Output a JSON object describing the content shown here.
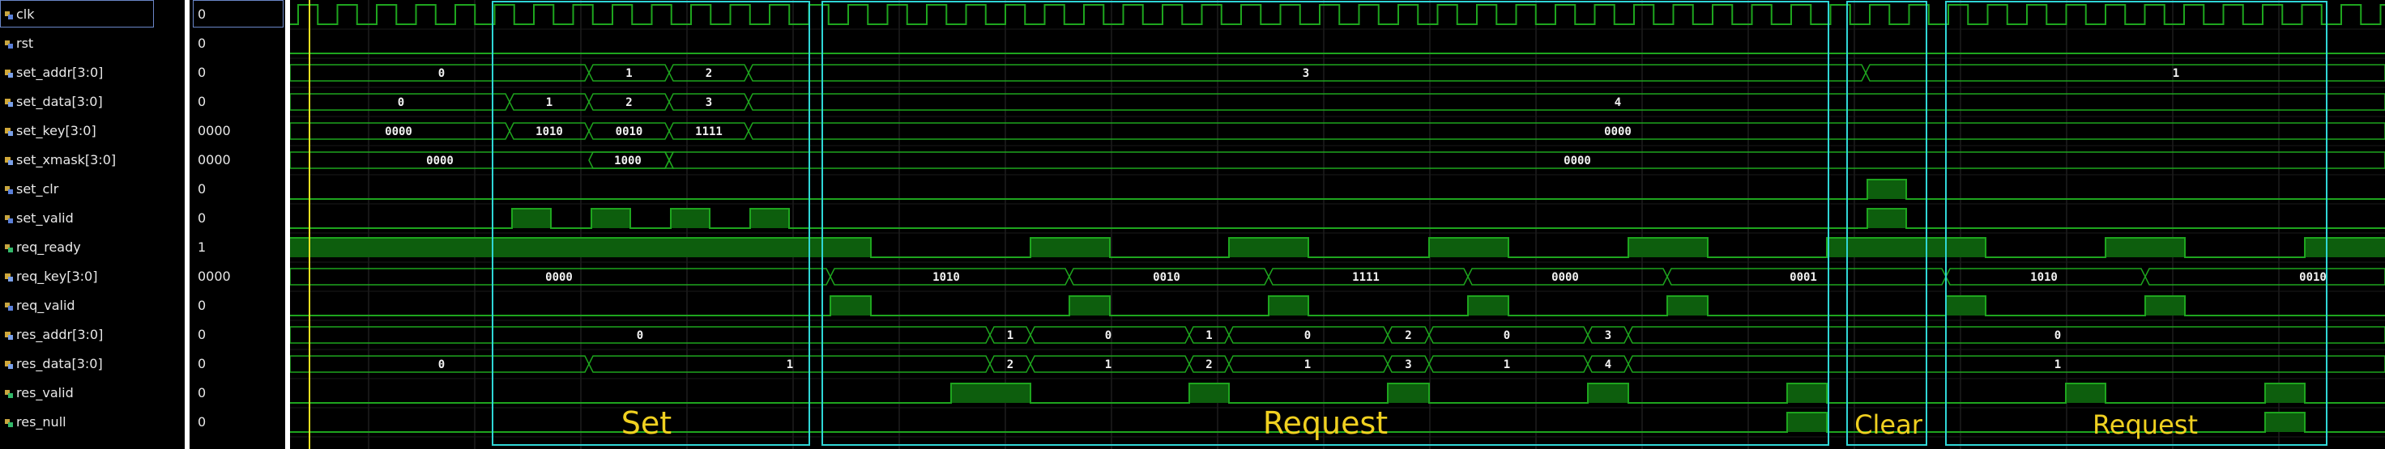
{
  "signals": [
    {
      "name": "clk",
      "value": "0",
      "kind": "in"
    },
    {
      "name": "rst",
      "value": "0",
      "kind": "in"
    },
    {
      "name": "set_addr[3:0]",
      "value": "0",
      "kind": "bus"
    },
    {
      "name": "set_data[3:0]",
      "value": "0",
      "kind": "bus"
    },
    {
      "name": "set_key[3:0]",
      "value": "0000",
      "kind": "bus"
    },
    {
      "name": "set_xmask[3:0]",
      "value": "0000",
      "kind": "bus"
    },
    {
      "name": "set_clr",
      "value": "0",
      "kind": "in"
    },
    {
      "name": "set_valid",
      "value": "0",
      "kind": "in"
    },
    {
      "name": "req_ready",
      "value": "1",
      "kind": "out"
    },
    {
      "name": "req_key[3:0]",
      "value": "0000",
      "kind": "bus"
    },
    {
      "name": "req_valid",
      "value": "0",
      "kind": "in"
    },
    {
      "name": "res_addr[3:0]",
      "value": "0",
      "kind": "bus"
    },
    {
      "name": "res_data[3:0]",
      "value": "0",
      "kind": "bus"
    },
    {
      "name": "res_valid",
      "value": "0",
      "kind": "out"
    },
    {
      "name": "res_null",
      "value": "0",
      "kind": "out"
    }
  ],
  "bus_labels": {
    "set_addr": [
      "0",
      "1",
      "2",
      "3",
      "1"
    ],
    "set_data": [
      "0",
      "1",
      "2",
      "3",
      "4"
    ],
    "set_key": [
      "0000",
      "1010",
      "0010",
      "1111",
      "0000"
    ],
    "set_xmask": [
      "0000",
      "1000",
      "0000"
    ],
    "req_key": [
      "0000",
      "1010",
      "0010",
      "1111",
      "0000",
      "0001",
      "1010",
      "0010"
    ],
    "res_addr": [
      "0",
      "1",
      "0",
      "1",
      "0",
      "2",
      "0",
      "3",
      "0"
    ],
    "res_data": [
      "0",
      "1",
      "2",
      "1",
      "2",
      "1",
      "3",
      "1",
      "4",
      "1"
    ]
  },
  "regions": [
    "Set",
    "Request",
    "Clear",
    "Request"
  ],
  "colors": {
    "wave": "#1ea51e",
    "fill": "#0d5e0d",
    "grid": "#2c2c2c",
    "region": "#2fd6d6",
    "label": "#f0d020",
    "cursor": "#e8e020"
  }
}
